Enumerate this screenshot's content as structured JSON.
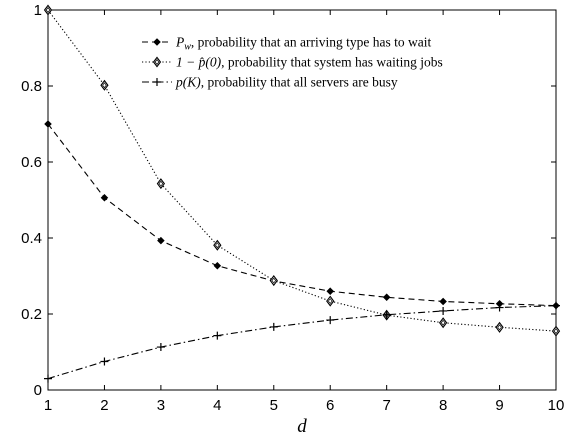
{
  "chart_data": {
    "type": "line",
    "xlabel": "d",
    "ylabel": "",
    "title": "",
    "x": [
      1,
      2,
      3,
      4,
      5,
      6,
      7,
      8,
      9,
      10
    ],
    "xlim": [
      1,
      10
    ],
    "ylim": [
      0,
      1
    ],
    "xticks": [
      "1",
      "2",
      "3",
      "4",
      "5",
      "6",
      "7",
      "8",
      "9",
      "10"
    ],
    "yticks": [
      "0",
      "0.2",
      "0.4",
      "0.6",
      "0.8",
      "1"
    ],
    "grid": false,
    "legend_position": "top-right",
    "series": [
      {
        "name": "P_w, probability that an arriving type has to wait",
        "legend_math": "P",
        "legend_sub": "w",
        "legend_text": ", probability that an arriving type has to wait",
        "linestyle": "dashed",
        "marker": "filled-diamond",
        "values": [
          0.7,
          0.506,
          0.393,
          0.327,
          0.287,
          0.26,
          0.244,
          0.233,
          0.227,
          0.222
        ]
      },
      {
        "name": "1 − p̂(0), probability that system has waiting jobs",
        "legend_math": "1 − p̂(0)",
        "legend_sub": "",
        "legend_text": ", probability that system has waiting jobs",
        "linestyle": "dotted",
        "marker": "open-diamond",
        "values": [
          1.0,
          0.802,
          0.543,
          0.381,
          0.288,
          0.234,
          0.197,
          0.177,
          0.165,
          0.155
        ]
      },
      {
        "name": "p(K), probability that all servers are busy",
        "legend_math": "p(K)",
        "legend_sub": "",
        "legend_text": ", probability that all servers are busy",
        "linestyle": "dashdot",
        "marker": "plus",
        "values": [
          0.03,
          0.075,
          0.113,
          0.143,
          0.166,
          0.184,
          0.198,
          0.208,
          0.217,
          0.222
        ]
      }
    ]
  }
}
